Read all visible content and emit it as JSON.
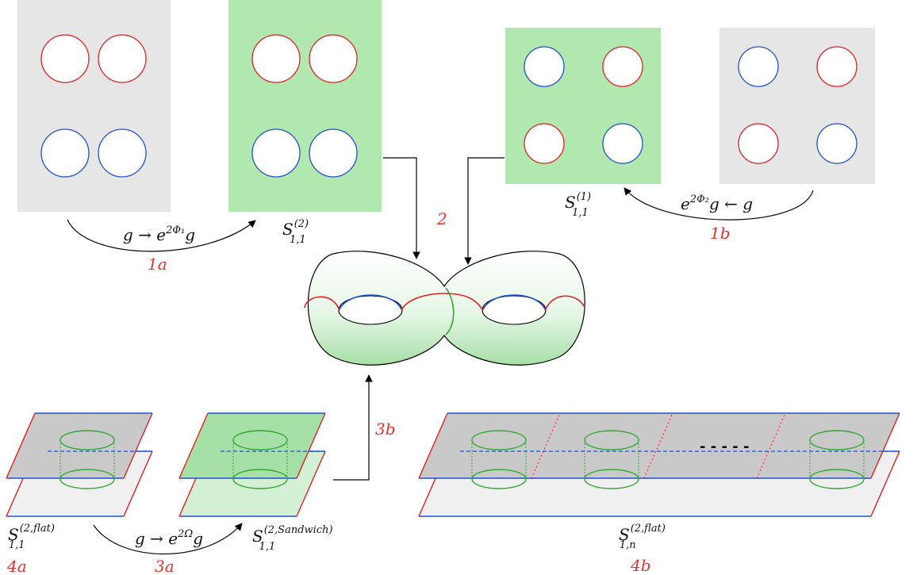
{
  "labels": {
    "l1a": "1a",
    "l1b": "1b",
    "l2": "2",
    "l3a": "3a",
    "l3b": "3b",
    "l4a": "4a",
    "l4b": "4b",
    "map1a": "g → e",
    "map1a_exp": "2Φ₁",
    "map1a_tail": "g",
    "map1b_head": "e",
    "map1b_exp": "2Φ₂",
    "map1b_tail": "g ← g",
    "map3a": "g → e",
    "map3a_exp": "2Ω",
    "map3a_tail": "g",
    "S": "S",
    "sub11": "1,1",
    "sub1n": "1,n",
    "sup2": "(2)",
    "sup1": "(1)",
    "sup2flat": "(2,flat)",
    "sup2sandwich": "(2,Sandwich)",
    "dots": "- - - - -"
  },
  "colors": {
    "grey_panel": "#e6e6e6",
    "green_panel": "#b0e8b0",
    "red_circle": "#e02020",
    "blue_circle": "#2050d0",
    "green_line": "#2fa82f",
    "label_red": "#e8322d"
  }
}
